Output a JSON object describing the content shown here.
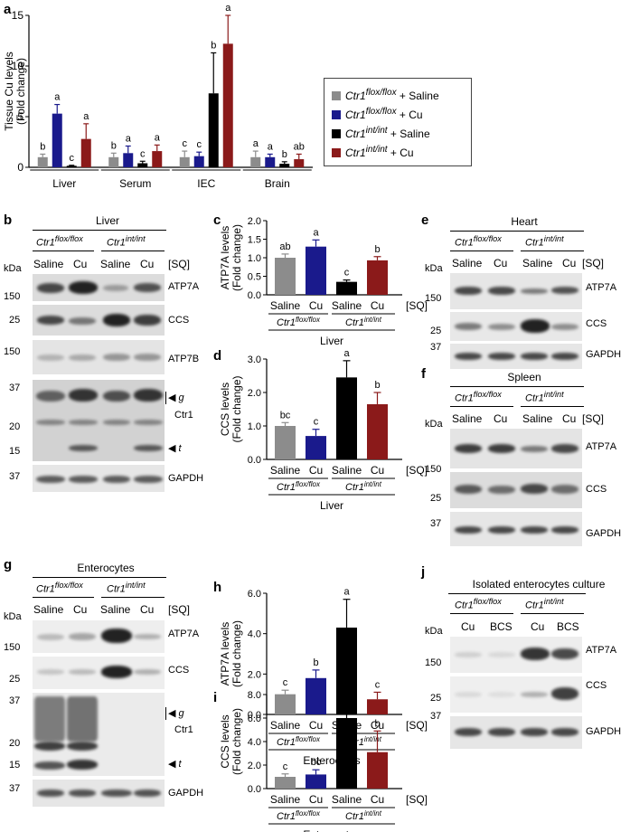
{
  "colors": {
    "saline_flox": "#8c8c8c",
    "cu_flox": "#1a1a8c",
    "saline_int": "#000000",
    "cu_int": "#8b1a1a"
  },
  "panels": {
    "a": "a",
    "b": "b",
    "c": "c",
    "d": "d",
    "e": "e",
    "f": "f",
    "g": "g",
    "h": "h",
    "i": "i",
    "j": "j"
  },
  "legend": {
    "rows": [
      {
        "gene": "Ctr1",
        "sup": "flox/flox",
        "rest": " + Saline"
      },
      {
        "gene": "Ctr1",
        "sup": "flox/flox",
        "rest": " + Cu"
      },
      {
        "gene": "Ctr1",
        "sup": "int/int",
        "rest": " + Saline"
      },
      {
        "gene": "Ctr1",
        "sup": "int/int",
        "rest": " + Cu"
      }
    ]
  },
  "common": {
    "kda": "kDa",
    "saline": "Saline",
    "cu": "Cu",
    "sq": "[SQ]",
    "bcs": "BCS",
    "gene": "Ctr1",
    "flox": "flox/flox",
    "int": "int/int",
    "atp7a": "ATP7A",
    "ccs": "CCS",
    "atp7b": "ATP7B",
    "ctr1": "Ctr1",
    "gapdh": "GAPDH",
    "g": "g",
    "t": "t"
  },
  "blot_b": {
    "title": "Liver",
    "markers": [
      "150",
      "25",
      "150",
      "37",
      "20",
      "15",
      "37"
    ]
  },
  "blot_e": {
    "title": "Heart",
    "markers": [
      "150",
      "25",
      "37"
    ]
  },
  "blot_f": {
    "title": "Spleen",
    "markers": [
      "150",
      "25",
      "37"
    ]
  },
  "blot_g": {
    "title": "Enterocytes",
    "markers": [
      "150",
      "25",
      "37",
      "20",
      "15",
      "37"
    ]
  },
  "blot_j": {
    "title": "Isolated enterocytes culture",
    "markers": [
      "150",
      "25",
      "37"
    ]
  },
  "chart_data": [
    {
      "type": "bar",
      "panel": "a",
      "ylabel": "Tissue Cu levels (Fold change)",
      "categories": [
        "Liver",
        "Serum",
        "IEC",
        "Brain"
      ],
      "ylim": [
        0,
        15
      ],
      "yticks": [
        0,
        5,
        10,
        15
      ],
      "series": [
        {
          "name": "Ctr1flox/flox + Saline",
          "values": [
            1.0,
            1.0,
            1.0,
            1.0
          ],
          "errors": [
            0.3,
            0.4,
            0.6,
            0.6
          ],
          "letters": [
            "b",
            "b",
            "c",
            "a"
          ]
        },
        {
          "name": "Ctr1flox/flox + Cu",
          "values": [
            5.3,
            1.4,
            1.1,
            1.0
          ],
          "errors": [
            0.9,
            0.7,
            0.4,
            0.3
          ],
          "letters": [
            "a",
            "a",
            "c",
            "a"
          ]
        },
        {
          "name": "Ctr1int/int + Saline",
          "values": [
            0.15,
            0.4,
            7.3,
            0.35
          ],
          "errors": [
            0.05,
            0.2,
            4.0,
            0.2
          ],
          "letters": [
            "c",
            "c",
            "b",
            "b"
          ]
        },
        {
          "name": "Ctr1int/int + Cu",
          "values": [
            2.8,
            1.6,
            12.2,
            0.8
          ],
          "errors": [
            1.5,
            0.6,
            2.8,
            0.5
          ],
          "letters": [
            "a",
            "a",
            "a",
            "ab"
          ]
        }
      ]
    },
    {
      "type": "bar",
      "panel": "c",
      "ylabel": "ATP7A levels (Fold change)",
      "xlabel": "Liver",
      "ylim": [
        0,
        2
      ],
      "yticks": [
        "0.0",
        "0.5",
        "1.0",
        "1.5",
        "2.0"
      ],
      "categories": [
        "Saline",
        "Cu",
        "Saline",
        "Cu"
      ],
      "values": [
        1.0,
        1.3,
        0.35,
        0.93
      ],
      "errors": [
        0.1,
        0.18,
        0.05,
        0.1
      ],
      "letters": [
        "ab",
        "a",
        "c",
        "b"
      ]
    },
    {
      "type": "bar",
      "panel": "d",
      "ylabel": "CCS levels (Fold change)",
      "xlabel": "Liver",
      "ylim": [
        0,
        3
      ],
      "yticks": [
        "0.0",
        "1.0",
        "2.0",
        "3.0"
      ],
      "categories": [
        "Saline",
        "Cu",
        "Saline",
        "Cu"
      ],
      "values": [
        1.0,
        0.7,
        2.45,
        1.65
      ],
      "errors": [
        0.1,
        0.2,
        0.5,
        0.35
      ],
      "letters": [
        "bc",
        "c",
        "a",
        "b"
      ]
    },
    {
      "type": "bar",
      "panel": "h",
      "ylabel": "ATP7A levels (Fold change)",
      "xlabel": "Enterocytes",
      "ylim": [
        0,
        6
      ],
      "yticks": [
        "0.0",
        "2.0",
        "4.0",
        "6.0"
      ],
      "categories": [
        "Saline",
        "Cu",
        "Saline",
        "Cu"
      ],
      "values": [
        1.0,
        1.8,
        4.3,
        0.75
      ],
      "errors": [
        0.2,
        0.4,
        1.4,
        0.35
      ],
      "letters": [
        "c",
        "b",
        "a",
        "c"
      ]
    },
    {
      "type": "bar",
      "panel": "i",
      "ylabel": "CCS levels (Fold change)",
      "xlabel": "Enterocytes",
      "ylim": [
        0,
        8
      ],
      "yticks": [
        "0.0",
        "2.0",
        "4.0",
        "6.0",
        "8.0"
      ],
      "categories": [
        "Saline",
        "Cu",
        "Saline",
        "Cu"
      ],
      "values": [
        1.0,
        1.2,
        6.0,
        3.1
      ],
      "errors": [
        0.25,
        0.4,
        1.9,
        1.8
      ],
      "letters": [
        "c",
        "bc",
        "a",
        "b"
      ]
    }
  ]
}
